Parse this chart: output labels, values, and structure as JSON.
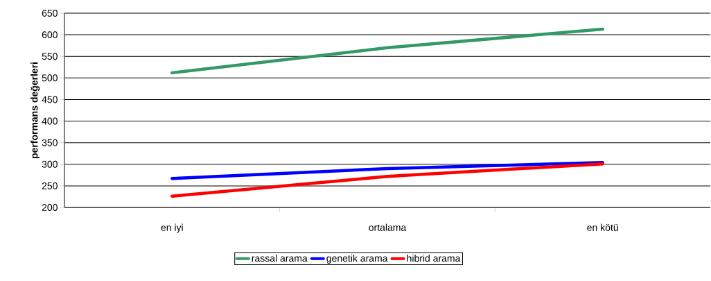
{
  "chart_data": {
    "type": "line",
    "ylabel": "performans değerleri",
    "categories": [
      "en iyi",
      "ortalama",
      "en kötü"
    ],
    "series": [
      {
        "name": "rassal arama",
        "color": "#339966",
        "values": [
          512,
          570,
          613
        ]
      },
      {
        "name": "genetik arama",
        "color": "#0000ff",
        "values": [
          267,
          290,
          304
        ]
      },
      {
        "name": "hibrid arama",
        "color": "#ff0000",
        "values": [
          226,
          272,
          301
        ]
      }
    ],
    "ylim": [
      200,
      650
    ],
    "yticks": [
      200,
      250,
      300,
      350,
      400,
      450,
      500,
      550,
      600,
      650
    ],
    "grid": "y",
    "legend": "bottom",
    "marker": "none",
    "line_style": "solid"
  }
}
